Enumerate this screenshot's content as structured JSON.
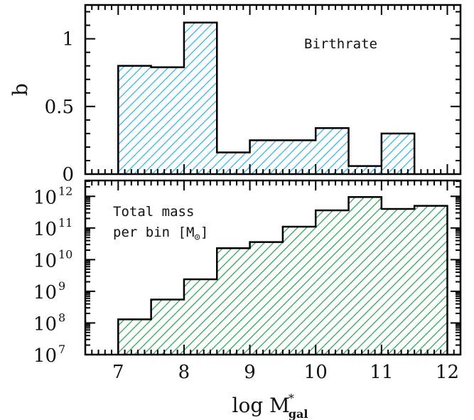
{
  "chart_data": [
    {
      "type": "bar",
      "panel": "top",
      "bin_edges": [
        7.0,
        7.5,
        8.0,
        8.5,
        9.0,
        9.5,
        10.0,
        10.5,
        11.0,
        11.5,
        12.0
      ],
      "values": [
        0.8,
        0.79,
        1.12,
        0.16,
        0.25,
        0.25,
        0.34,
        0.06,
        0.3,
        null
      ],
      "ylabel": "b",
      "annotation": "Birthrate",
      "xlim": [
        6.5,
        12.2
      ],
      "ylim": [
        0,
        1.25
      ],
      "yticks": [
        0,
        0.5,
        1
      ],
      "ytick_labels": [
        "0",
        "0.5",
        "1"
      ],
      "fill_color": "#29aee6",
      "hatch": "diagonal"
    },
    {
      "type": "bar",
      "panel": "bottom",
      "scale": "log",
      "bin_edges": [
        7.0,
        7.5,
        8.0,
        8.5,
        9.0,
        9.5,
        10.0,
        10.5,
        11.0,
        11.5,
        12.0
      ],
      "values": [
        130000000.0,
        550000000.0,
        2400000000.0,
        23000000000.0,
        36000000000.0,
        110000000000.0,
        360000000000.0,
        950000000000.0,
        400000000000.0,
        500000000000.0
      ],
      "annotation_lines": [
        "Total mass",
        "per bin  [M",
        "]"
      ],
      "annotation_symbol": "⊙",
      "xlim": [
        6.5,
        12.2
      ],
      "ylim_log10": [
        7,
        12.5
      ],
      "ytick_exponents": [
        "7",
        "8",
        "9",
        "10",
        "11",
        "12"
      ],
      "ytick_base": "10",
      "fill_color": "#1fa14f",
      "hatch": "diagonal"
    }
  ],
  "xaxis": {
    "ticks": [
      7,
      8,
      9,
      10,
      11,
      12
    ],
    "tick_labels": [
      "7",
      "8",
      "9",
      "10",
      "11",
      "12"
    ],
    "label_main": "log M",
    "label_sup": "*",
    "label_sub": "gal"
  }
}
